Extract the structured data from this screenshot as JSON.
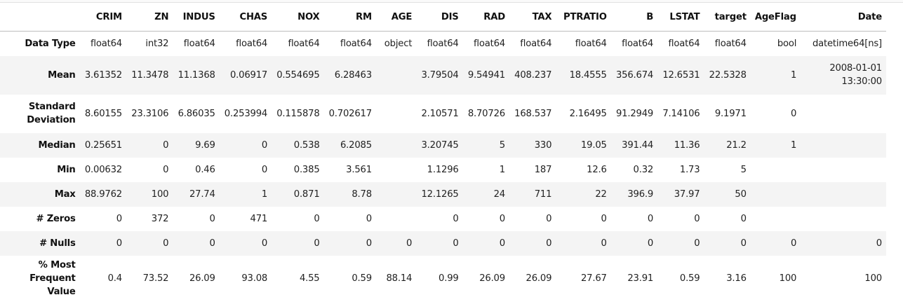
{
  "columns": [
    "CRIM",
    "ZN",
    "INDUS",
    "CHAS",
    "NOX",
    "RM",
    "AGE",
    "DIS",
    "RAD",
    "TAX",
    "PTRATIO",
    "B",
    "LSTAT",
    "target",
    "AgeFlag",
    "Date"
  ],
  "rows": [
    {
      "label": "Data Type",
      "values": [
        "float64",
        "int32",
        "float64",
        "float64",
        "float64",
        "float64",
        "object",
        "float64",
        "float64",
        "float64",
        "float64",
        "float64",
        "float64",
        "float64",
        "bool",
        "datetime64[ns]"
      ]
    },
    {
      "label": "Mean",
      "values": [
        "3.61352",
        "11.3478",
        "11.1368",
        "0.06917",
        "0.554695",
        "6.28463",
        "",
        "3.79504",
        "9.54941",
        "408.237",
        "18.4555",
        "356.674",
        "12.6531",
        "22.5328",
        "1",
        "2008-01-01 13:30:00"
      ]
    },
    {
      "label": "Standard Deviation",
      "values": [
        "8.60155",
        "23.3106",
        "6.86035",
        "0.253994",
        "0.115878",
        "0.702617",
        "",
        "2.10571",
        "8.70726",
        "168.537",
        "2.16495",
        "91.2949",
        "7.14106",
        "9.1971",
        "0",
        ""
      ]
    },
    {
      "label": "Median",
      "values": [
        "0.25651",
        "0",
        "9.69",
        "0",
        "0.538",
        "6.2085",
        "",
        "3.20745",
        "5",
        "330",
        "19.05",
        "391.44",
        "11.36",
        "21.2",
        "1",
        ""
      ]
    },
    {
      "label": "Min",
      "values": [
        "0.00632",
        "0",
        "0.46",
        "0",
        "0.385",
        "3.561",
        "",
        "1.1296",
        "1",
        "187",
        "12.6",
        "0.32",
        "1.73",
        "5",
        "",
        ""
      ]
    },
    {
      "label": "Max",
      "values": [
        "88.9762",
        "100",
        "27.74",
        "1",
        "0.871",
        "8.78",
        "",
        "12.1265",
        "24",
        "711",
        "22",
        "396.9",
        "37.97",
        "50",
        "",
        ""
      ]
    },
    {
      "label": "# Zeros",
      "values": [
        "0",
        "372",
        "0",
        "471",
        "0",
        "0",
        "",
        "0",
        "0",
        "0",
        "0",
        "0",
        "0",
        "0",
        "",
        ""
      ]
    },
    {
      "label": "# Nulls",
      "values": [
        "0",
        "0",
        "0",
        "0",
        "0",
        "0",
        "0",
        "0",
        "0",
        "0",
        "0",
        "0",
        "0",
        "0",
        "0",
        "0"
      ]
    },
    {
      "label": "% Most Frequent Value",
      "values": [
        "0.4",
        "73.52",
        "26.09",
        "93.08",
        "4.55",
        "0.59",
        "88.14",
        "0.99",
        "26.09",
        "26.09",
        "27.67",
        "23.91",
        "0.59",
        "3.16",
        "100",
        "100"
      ]
    }
  ],
  "colors": {
    "row_stripe": "#f4f4f4",
    "header_rule": "#bdbdbd",
    "text": "#222222"
  }
}
